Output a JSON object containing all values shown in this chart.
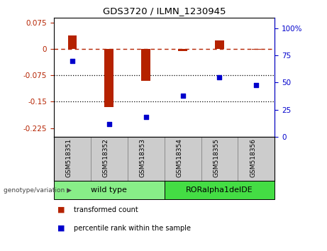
{
  "title": "GDS3720 / ILMN_1230945",
  "samples": [
    "GSM518351",
    "GSM518352",
    "GSM518353",
    "GSM518354",
    "GSM518355",
    "GSM518356"
  ],
  "bar_values": [
    0.04,
    -0.165,
    -0.09,
    -0.005,
    0.025,
    -0.002
  ],
  "scatter_values": [
    70,
    12,
    18,
    38,
    55,
    48
  ],
  "ylim_left": [
    -0.25,
    0.09
  ],
  "ylim_right": [
    0,
    110
  ],
  "yticks_left": [
    0.075,
    0,
    -0.075,
    -0.15,
    -0.225
  ],
  "yticks_right": [
    100,
    75,
    50,
    25,
    0
  ],
  "hlines_dotted": [
    -0.075,
    -0.15
  ],
  "hline_dash": 0,
  "bar_color": "#b52200",
  "scatter_color": "#0000cc",
  "groups": [
    {
      "label": "wild type",
      "indices": [
        0,
        1,
        2
      ],
      "color": "#88ee88"
    },
    {
      "label": "RORalpha1delDE",
      "indices": [
        3,
        4,
        5
      ],
      "color": "#44dd44"
    }
  ],
  "group_label": "genotype/variation",
  "legend_items": [
    {
      "label": "transformed count",
      "color": "#b52200"
    },
    {
      "label": "percentile rank within the sample",
      "color": "#0000cc"
    }
  ],
  "background_color": "#ffffff",
  "plot_bg": "#ffffff",
  "bar_width": 0.25
}
